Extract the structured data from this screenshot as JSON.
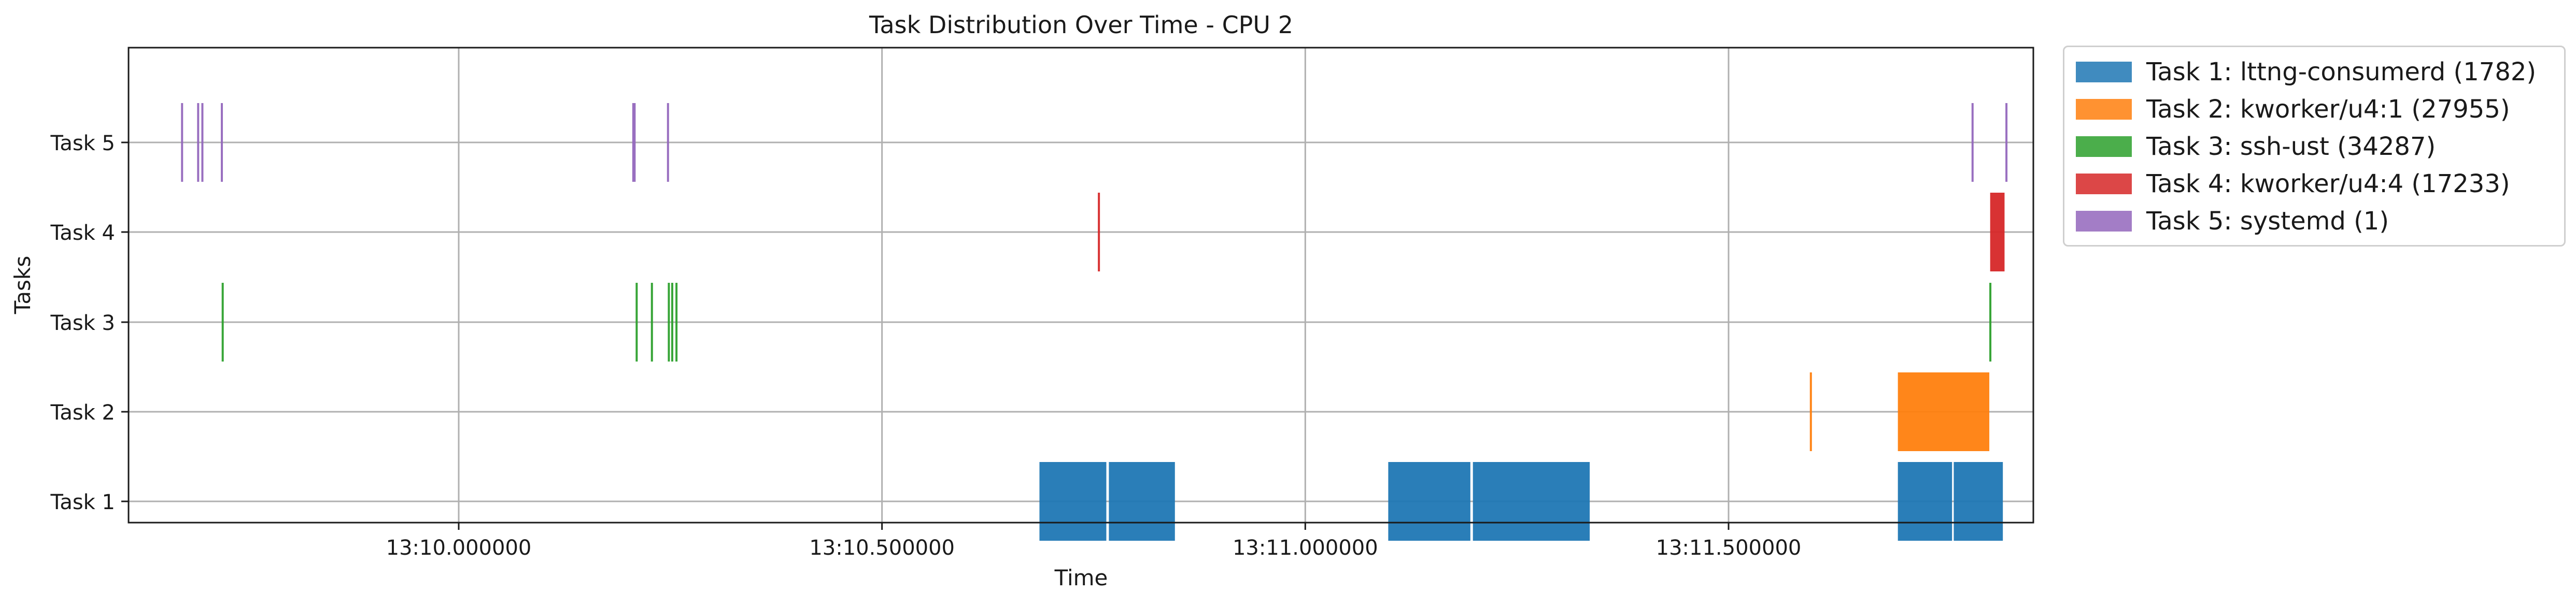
{
  "chart_data": {
    "type": "timeline",
    "title": "Task Distribution Over Time - CPU 2",
    "xlabel": "Time",
    "ylabel": "Tasks",
    "xlim": [
      "13:09.61",
      "13:11.86"
    ],
    "x_ticks": [
      "13:10.000000",
      "13:10.500000",
      "13:11.000000",
      "13:11.500000"
    ],
    "y_ticks": [
      "Task 1",
      "Task 2",
      "Task 3",
      "Task 4",
      "Task 5"
    ],
    "grid": true,
    "legend_position": "outside-right-top",
    "series": [
      {
        "name": "Task 1: lttng-consumerd (1782)",
        "color": "#1f77b4",
        "intervals": [
          [
            "13:10.686",
            "13:10.765"
          ],
          [
            "13:10.768",
            "13:10.846"
          ],
          [
            "13:11.098",
            "13:11.195"
          ],
          [
            "13:11.198",
            "13:11.336"
          ],
          [
            "13:11.700",
            "13:11.764"
          ],
          [
            "13:11.766",
            "13:11.824"
          ]
        ]
      },
      {
        "name": "Task 2: kworker/u4:1 (27955)",
        "color": "#ff7f0e",
        "intervals": [
          [
            "13:11.596",
            "13:11.598"
          ],
          [
            "13:11.700",
            "13:11.808"
          ]
        ]
      },
      {
        "name": "Task 3: ssh-ust (34287)",
        "color": "#2ca02c",
        "intervals": [
          [
            "13:09.720",
            "13:09.722"
          ],
          [
            "13:10.209",
            "13:10.211"
          ],
          [
            "13:10.227",
            "13:10.229"
          ],
          [
            "13:10.247",
            "13:10.249"
          ],
          [
            "13:10.251",
            "13:10.253"
          ],
          [
            "13:10.256",
            "13:10.258"
          ],
          [
            "13:11.808",
            "13:11.810"
          ]
        ]
      },
      {
        "name": "Task 4: kworker/u4:4 (17233)",
        "color": "#d62728",
        "intervals": [
          [
            "13:10.755",
            "13:10.757"
          ],
          [
            "13:11.809",
            "13:11.826"
          ]
        ]
      },
      {
        "name": "Task 5: systemd (1)",
        "color": "#9467bd",
        "intervals": [
          [
            "13:09.672",
            "13:09.674"
          ],
          [
            "13:09.691",
            "13:09.693"
          ],
          [
            "13:09.696",
            "13:09.698"
          ],
          [
            "13:09.719",
            "13:09.721"
          ],
          [
            "13:10.205",
            "13:10.209"
          ],
          [
            "13:10.246",
            "13:10.248"
          ],
          [
            "13:11.787",
            "13:11.789"
          ],
          [
            "13:11.827",
            "13:11.829"
          ]
        ]
      }
    ]
  }
}
